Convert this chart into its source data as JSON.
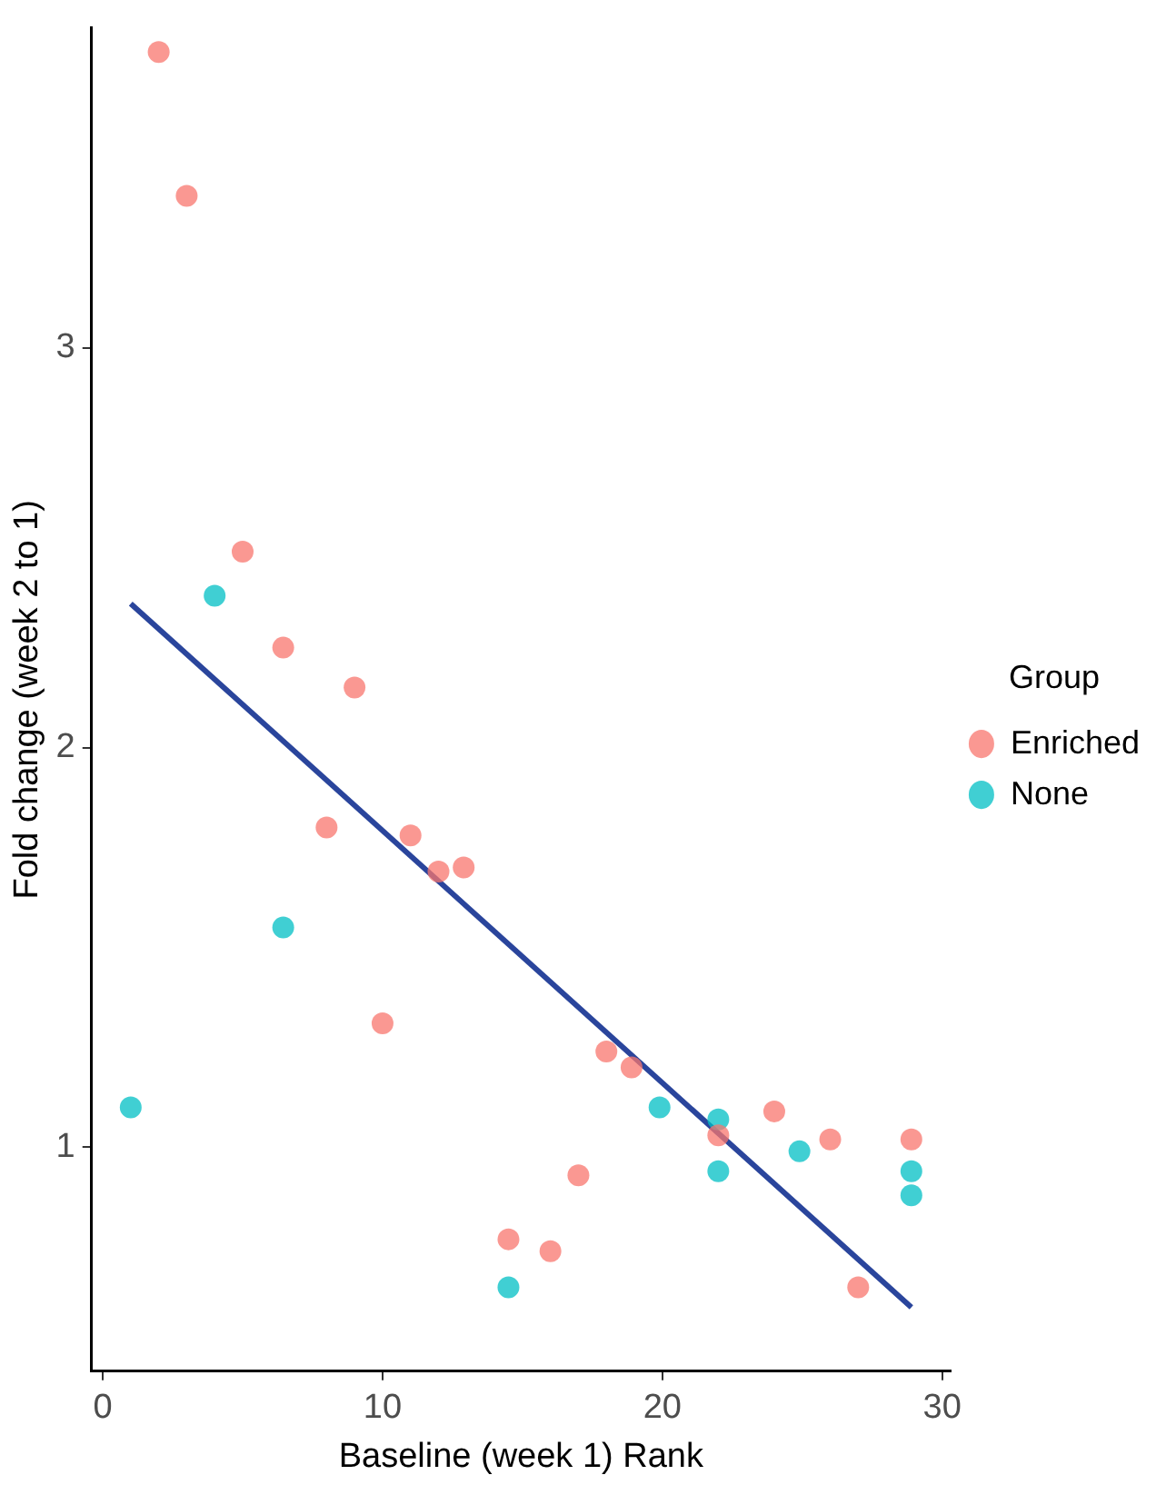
{
  "chart_data": {
    "type": "scatter",
    "xlabel": "Baseline (week 1) Rank",
    "ylabel": "Fold change (week 2 to 1)",
    "legend_title": "Group",
    "legend": "right",
    "marker": "circle",
    "grid": false,
    "xlim": [
      -0.4,
      30.3
    ],
    "xticks": [
      0,
      10,
      20,
      30
    ],
    "ylim": [
      0.44,
      3.8
    ],
    "yticks": [
      1,
      2,
      3
    ],
    "series": [
      {
        "name": "Enriched",
        "color": "#f8766d",
        "x": [
          2.0,
          3.0,
          5.0,
          6.45,
          9.0,
          8.0,
          11.0,
          12.0,
          12.9,
          10.0,
          18.0,
          18.9,
          22.0,
          24.0,
          26.0,
          28.9,
          17.0,
          14.5,
          16.0,
          27.0
        ],
        "values": [
          3.74,
          3.38,
          2.49,
          2.25,
          2.15,
          1.8,
          1.78,
          1.69,
          1.7,
          1.31,
          1.24,
          1.2,
          1.03,
          1.09,
          1.02,
          1.02,
          0.93,
          0.77,
          0.74,
          0.65
        ]
      },
      {
        "name": "None",
        "color": "#00bfc4",
        "x": [
          4.0,
          6.45,
          1.0,
          19.9,
          22.0,
          22.0,
          24.9,
          28.9,
          28.9,
          14.5
        ],
        "values": [
          2.38,
          1.55,
          1.1,
          1.1,
          1.07,
          0.94,
          0.99,
          0.94,
          0.88,
          0.65
        ]
      },
      {
        "type": "line",
        "color": "#2a459c",
        "x": [
          1.0,
          28.9
        ],
        "values": [
          2.36,
          0.6
        ],
        "marker": "none"
      }
    ]
  }
}
